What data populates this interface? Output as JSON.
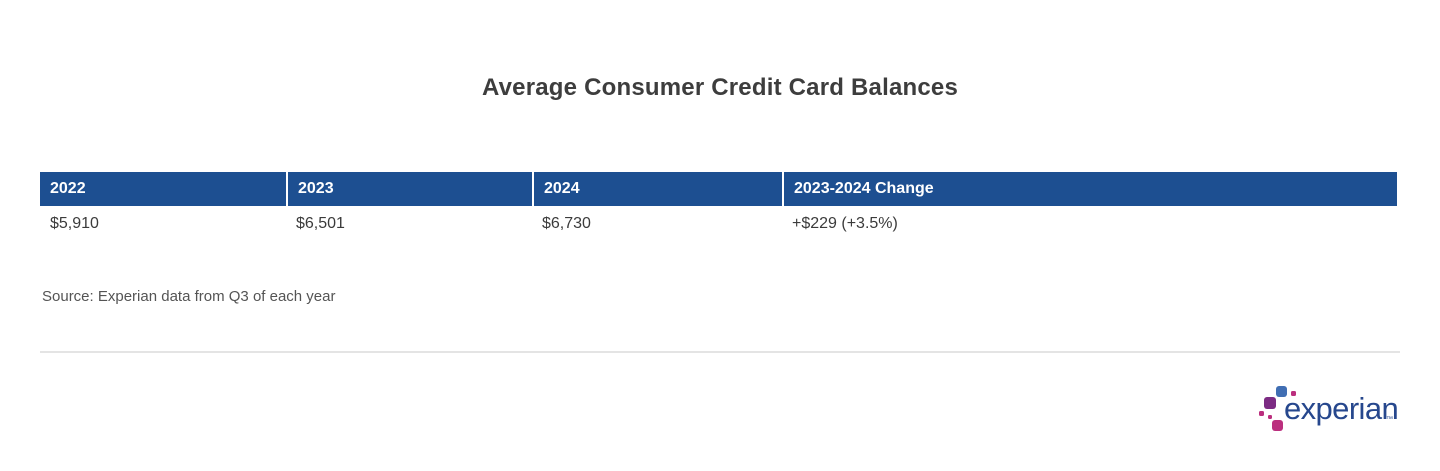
{
  "page": {
    "title": "Average Consumer Credit Card Balances",
    "source_note": "Source: Experian data from Q3 of each year"
  },
  "table": {
    "columns": [
      "2022",
      "2023",
      "2024",
      "2023-2024 Change"
    ],
    "rows": [
      [
        "$5,910",
        "$6,501",
        "$6,730",
        "+$229 (+3.5%)"
      ]
    ]
  },
  "chart_data": {
    "type": "table",
    "title": "Average Consumer Credit Card Balances",
    "columns": [
      "2022",
      "2023",
      "2024",
      "2023-2024 Change"
    ],
    "rows": [
      [
        "$5,910",
        "$6,501",
        "$6,730",
        "+$229 (+3.5%)"
      ]
    ],
    "values_numeric": {
      "2022": 5910,
      "2023": 6501,
      "2024": 6730,
      "change_2023_2024_dollars": 229,
      "change_2023_2024_percent": 3.5
    },
    "source": "Source: Experian data from Q3 of each year"
  },
  "logo": {
    "text": "experian",
    "trademark": "™"
  },
  "colors": {
    "header_bg": "#1D4F91",
    "header_text": "#FFFFFF",
    "title_text": "#3D3D3D",
    "body_text": "#3B3B3B",
    "source_text": "#545454",
    "divider": "#E4E4E4",
    "logo_text": "#26478D",
    "logo_blue": "#406EB3",
    "logo_purple": "#7C2B83",
    "logo_magenta": "#BB2F7E"
  }
}
